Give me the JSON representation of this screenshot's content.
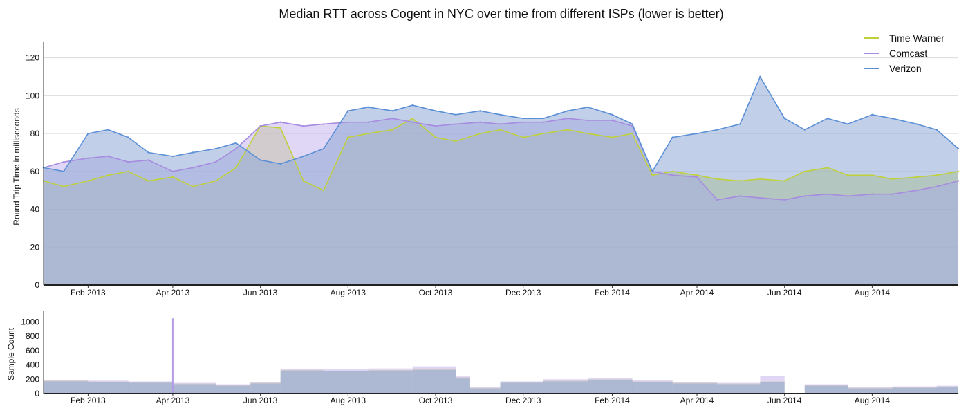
{
  "chart_data": [
    {
      "type": "area",
      "title": "Median RTT across Cogent in NYC over time from different ISPs (lower is better)",
      "xlabel": "",
      "ylabel": "Round Trip Time in milliseconds",
      "x_range": [
        "2013-01-01",
        "2014-09-30"
      ],
      "ylim": [
        0,
        125
      ],
      "yticks": [
        0,
        20,
        40,
        60,
        80,
        100,
        120
      ],
      "xticks": [
        "Feb 2013",
        "Apr 2013",
        "Jun 2013",
        "Aug 2013",
        "Oct 2013",
        "Dec 2013",
        "Feb 2014",
        "Apr 2014",
        "Jun 2014",
        "Aug 2014"
      ],
      "grid": true,
      "legend_position": "top-right",
      "series": [
        {
          "name": "Time Warner",
          "color": "#bfd13a",
          "fill": "#c9d65e",
          "x": [
            "2013-01-01",
            "2013-01-15",
            "2013-02-01",
            "2013-02-15",
            "2013-03-01",
            "2013-03-15",
            "2013-04-01",
            "2013-04-15",
            "2013-05-01",
            "2013-05-15",
            "2013-06-01",
            "2013-06-15",
            "2013-07-01",
            "2013-07-15",
            "2013-08-01",
            "2013-08-15",
            "2013-09-01",
            "2013-09-15",
            "2013-10-01",
            "2013-10-15",
            "2013-11-01",
            "2013-11-15",
            "2013-12-01",
            "2013-12-15",
            "2014-01-01",
            "2014-01-15",
            "2014-02-01",
            "2014-02-15",
            "2014-03-01",
            "2014-03-15",
            "2014-04-01",
            "2014-04-15",
            "2014-05-01",
            "2014-05-15",
            "2014-06-01",
            "2014-06-15",
            "2014-07-01",
            "2014-07-15",
            "2014-08-01",
            "2014-08-15",
            "2014-09-01",
            "2014-09-15",
            "2014-09-30"
          ],
          "values": [
            55,
            52,
            55,
            58,
            60,
            55,
            57,
            52,
            55,
            62,
            84,
            83,
            55,
            50,
            78,
            80,
            82,
            88,
            78,
            76,
            80,
            82,
            78,
            80,
            82,
            80,
            78,
            80,
            58,
            60,
            58,
            56,
            55,
            56,
            55,
            60,
            62,
            58,
            58,
            56,
            57,
            58,
            60
          ]
        },
        {
          "name": "Comcast",
          "color": "#a78be0",
          "fill": "#c7b4ee",
          "x": [
            "2013-01-01",
            "2013-01-15",
            "2013-02-01",
            "2013-02-15",
            "2013-03-01",
            "2013-03-15",
            "2013-04-01",
            "2013-04-15",
            "2013-05-01",
            "2013-05-15",
            "2013-06-01",
            "2013-06-15",
            "2013-07-01",
            "2013-07-15",
            "2013-08-01",
            "2013-08-15",
            "2013-09-01",
            "2013-09-15",
            "2013-10-01",
            "2013-10-15",
            "2013-11-01",
            "2013-11-15",
            "2013-12-01",
            "2013-12-15",
            "2014-01-01",
            "2014-01-15",
            "2014-02-01",
            "2014-02-15",
            "2014-03-01",
            "2014-03-15",
            "2014-04-01",
            "2014-04-15",
            "2014-05-01",
            "2014-05-15",
            "2014-06-01",
            "2014-06-15",
            "2014-07-01",
            "2014-07-15",
            "2014-08-01",
            "2014-08-15",
            "2014-09-01",
            "2014-09-15",
            "2014-09-30"
          ],
          "values": [
            62,
            65,
            67,
            68,
            65,
            66,
            60,
            62,
            65,
            72,
            84,
            86,
            84,
            85,
            86,
            86,
            88,
            86,
            84,
            85,
            86,
            85,
            86,
            86,
            88,
            87,
            87,
            84,
            60,
            58,
            57,
            45,
            47,
            46,
            45,
            47,
            48,
            47,
            48,
            48,
            50,
            52,
            55
          ]
        },
        {
          "name": "Verizon",
          "color": "#5b8fd6",
          "fill": "#8ea9d6",
          "x": [
            "2013-01-01",
            "2013-01-15",
            "2013-02-01",
            "2013-02-15",
            "2013-03-01",
            "2013-03-15",
            "2013-04-01",
            "2013-04-15",
            "2013-05-01",
            "2013-05-15",
            "2013-06-01",
            "2013-06-15",
            "2013-07-01",
            "2013-07-15",
            "2013-08-01",
            "2013-08-15",
            "2013-09-01",
            "2013-09-15",
            "2013-10-01",
            "2013-10-15",
            "2013-11-01",
            "2013-11-15",
            "2013-12-01",
            "2013-12-15",
            "2014-01-01",
            "2014-01-15",
            "2014-02-01",
            "2014-02-15",
            "2014-03-01",
            "2014-03-15",
            "2014-04-01",
            "2014-04-15",
            "2014-05-01",
            "2014-05-15",
            "2014-06-01",
            "2014-06-15",
            "2014-07-01",
            "2014-07-15",
            "2014-08-01",
            "2014-08-15",
            "2014-09-01",
            "2014-09-15",
            "2014-09-30"
          ],
          "values": [
            62,
            60,
            80,
            82,
            78,
            70,
            68,
            70,
            72,
            75,
            66,
            64,
            68,
            72,
            92,
            94,
            92,
            95,
            92,
            90,
            92,
            90,
            88,
            88,
            92,
            94,
            90,
            85,
            60,
            78,
            80,
            82,
            85,
            110,
            88,
            82,
            88,
            85,
            90,
            88,
            85,
            82,
            72
          ]
        }
      ]
    },
    {
      "type": "bar",
      "title": "",
      "xlabel": "",
      "ylabel": "Sample Count",
      "x_range": [
        "2013-01-01",
        "2014-09-30"
      ],
      "ylim": [
        0,
        1100
      ],
      "yticks": [
        0,
        200,
        400,
        600,
        800,
        1000
      ],
      "xticks": [
        "Feb 2013",
        "Apr 2013",
        "Jun 2013",
        "Aug 2013",
        "Oct 2013",
        "Dec 2013",
        "Feb 2014",
        "Apr 2014",
        "Jun 2014",
        "Aug 2014"
      ],
      "grid": false,
      "series": [
        {
          "name": "Time Warner",
          "color": "#c9d65e",
          "x": [
            "2013-01-01",
            "2013-02-01",
            "2013-03-01",
            "2013-04-01",
            "2013-05-01",
            "2013-05-25",
            "2013-06-15",
            "2013-07-15",
            "2013-08-15",
            "2013-09-15",
            "2013-10-15",
            "2013-10-25",
            "2013-11-15",
            "2013-12-15",
            "2014-01-15",
            "2014-02-15",
            "2014-03-15",
            "2014-04-15",
            "2014-05-15",
            "2014-06-01",
            "2014-06-15",
            "2014-07-15",
            "2014-08-15",
            "2014-09-15",
            "2014-09-30"
          ],
          "values": [
            180,
            170,
            160,
            140,
            120,
            150,
            330,
            320,
            330,
            350,
            230,
            80,
            160,
            180,
            200,
            170,
            150,
            140,
            170,
            0,
            120,
            80,
            90,
            100,
            90
          ]
        },
        {
          "name": "Comcast",
          "color": "#c7b4ee",
          "x": [
            "2013-01-01",
            "2013-02-01",
            "2013-03-01",
            "2013-04-01",
            "2013-05-01",
            "2013-05-25",
            "2013-06-15",
            "2013-07-15",
            "2013-08-15",
            "2013-09-15",
            "2013-10-15",
            "2013-10-25",
            "2013-11-15",
            "2013-12-15",
            "2014-01-15",
            "2014-02-15",
            "2014-03-15",
            "2014-04-15",
            "2014-05-15",
            "2014-06-01",
            "2014-06-15",
            "2014-07-15",
            "2014-08-15",
            "2014-09-15",
            "2014-09-30"
          ],
          "values": [
            190,
            180,
            170,
            150,
            130,
            160,
            340,
            340,
            350,
            380,
            240,
            90,
            170,
            200,
            220,
            190,
            160,
            150,
            250,
            0,
            130,
            90,
            100,
            110,
            100
          ]
        },
        {
          "name": "Verizon",
          "color": "#8ea9d6",
          "x": [
            "2013-01-01",
            "2013-02-01",
            "2013-03-01",
            "2013-04-01",
            "2013-05-01",
            "2013-05-25",
            "2013-06-15",
            "2013-07-15",
            "2013-08-15",
            "2013-09-15",
            "2013-10-15",
            "2013-10-25",
            "2013-11-15",
            "2013-12-15",
            "2014-01-15",
            "2014-02-15",
            "2014-03-15",
            "2014-04-15",
            "2014-05-15",
            "2014-06-01",
            "2014-06-15",
            "2014-07-15",
            "2014-08-15",
            "2014-09-15",
            "2014-09-30"
          ],
          "values": [
            170,
            160,
            150,
            130,
            110,
            140,
            320,
            310,
            320,
            330,
            210,
            70,
            150,
            170,
            190,
            160,
            140,
            130,
            160,
            0,
            110,
            70,
            80,
            90,
            80
          ]
        }
      ],
      "annotations": [
        {
          "x": "2013-04-01",
          "value": 1050,
          "text": ""
        }
      ]
    }
  ]
}
